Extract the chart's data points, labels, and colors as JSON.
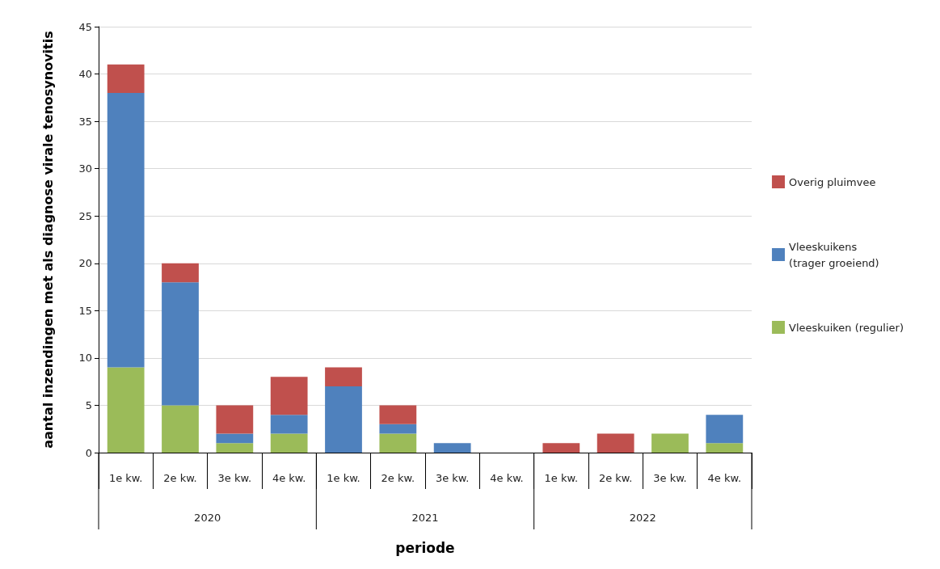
{
  "chart_data": {
    "type": "bar",
    "stacked": true,
    "xlabel": "periode",
    "ylabel": "aantal inzendingen met als diagnose virale tenosynovitis",
    "categories": [
      "1e kw.",
      "2e kw.",
      "3e kw.",
      "4e kw.",
      "1e kw.",
      "2e kw.",
      "3e kw.",
      "4e kw.",
      "1e kw.",
      "2e kw.",
      "3e kw.",
      "4e kw."
    ],
    "annotations": [
      "2020",
      "2021",
      "2022"
    ],
    "series": [
      {
        "name": "Vleeskuiken (regulier)",
        "color": "#9bbb59",
        "values": [
          9,
          5,
          1,
          2,
          0,
          2,
          0,
          0,
          0,
          0,
          2,
          1
        ]
      },
      {
        "name": "Vleeskuikens\n(trager groeiend)",
        "color": "#4f81bd",
        "values": [
          29,
          13,
          1,
          2,
          7,
          1,
          1,
          0,
          0,
          0,
          0,
          3
        ]
      },
      {
        "name": "Overig pluimvee",
        "color": "#c0504d",
        "values": [
          3,
          2,
          3,
          4,
          2,
          2,
          0,
          0,
          1,
          2,
          0,
          0
        ]
      }
    ],
    "ylim": [
      0,
      45
    ],
    "yticks": [
      0,
      5,
      10,
      15,
      20,
      25,
      30,
      35,
      40,
      45
    ],
    "grid": "y",
    "legend": "right"
  }
}
